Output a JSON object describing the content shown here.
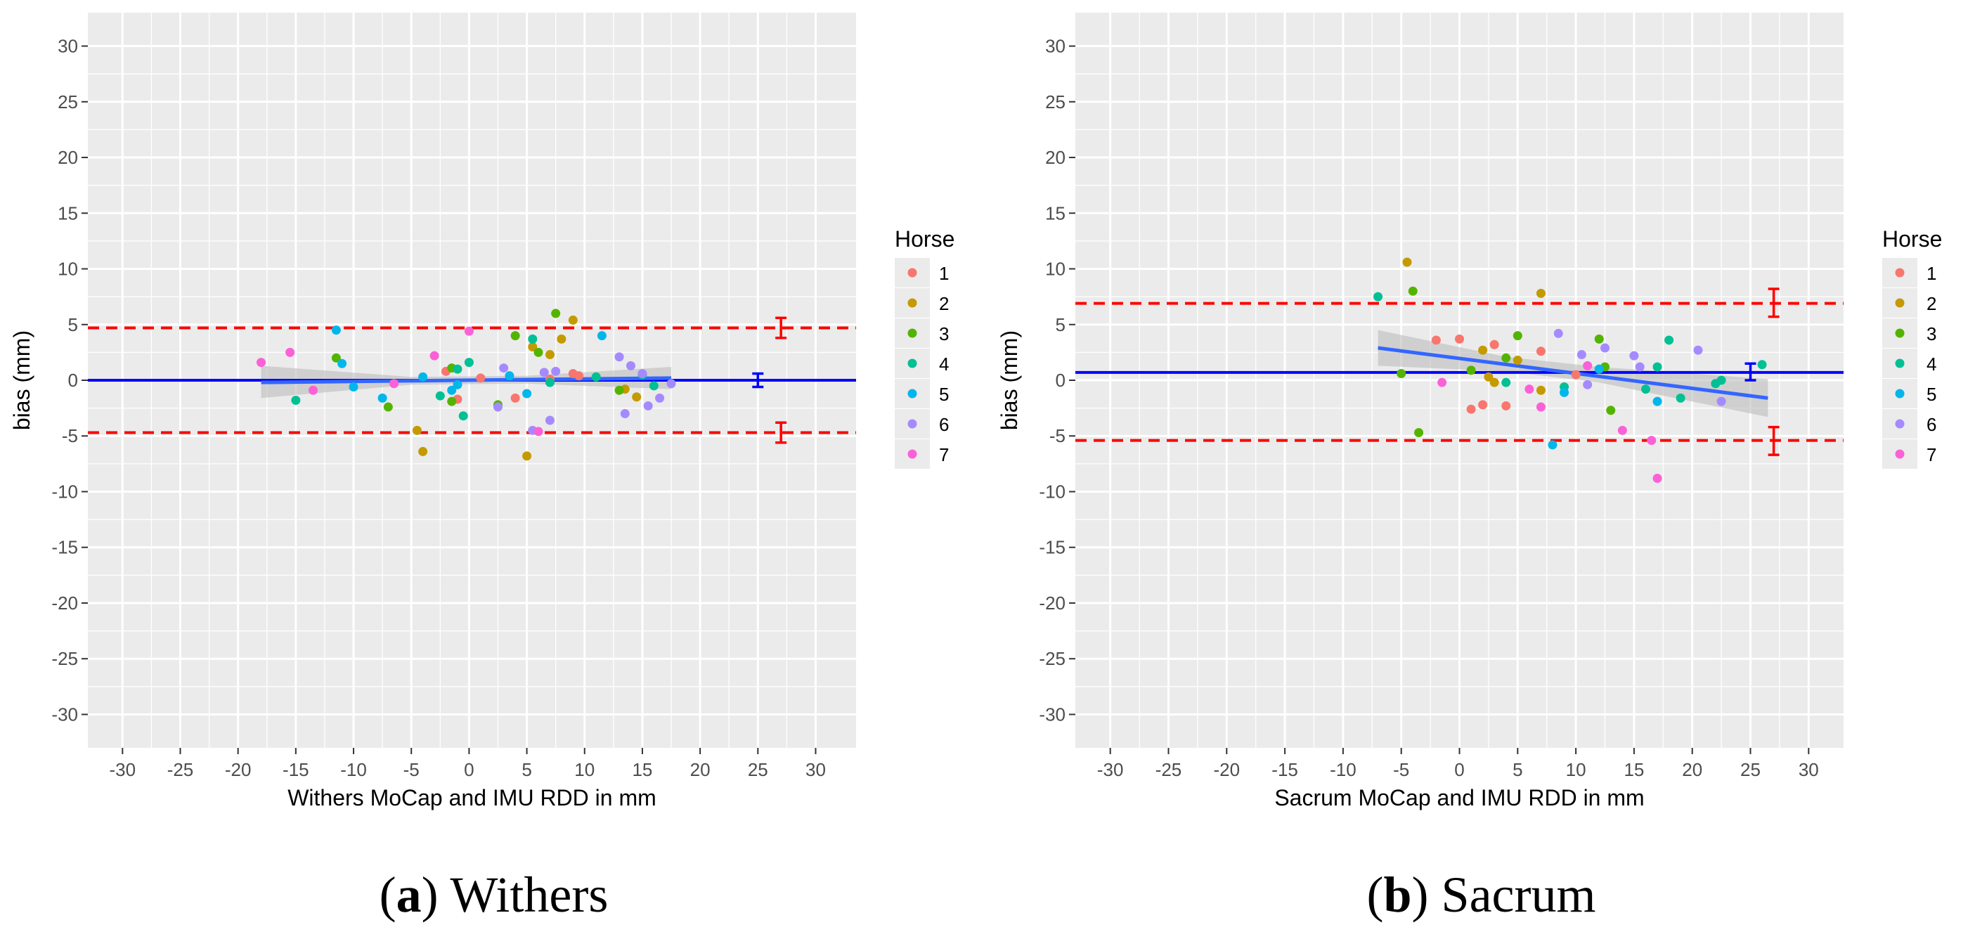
{
  "colors": {
    "panel_bg": "#EBEBEB",
    "grid": "#FFFFFF",
    "zero_line": "#0000FF",
    "fit_line": "#3366FF",
    "ci_band": "#BDBDBD",
    "loa": "#FF0000",
    "horses": [
      "#F8766D",
      "#C49A00",
      "#53B400",
      "#00C094",
      "#00B6EB",
      "#A58AFF",
      "#FB61D7"
    ]
  },
  "legend": {
    "title": "Horse",
    "items": [
      "1",
      "2",
      "3",
      "4",
      "5",
      "6",
      "7"
    ]
  },
  "chart_data": [
    {
      "type": "scatter",
      "panel": "a",
      "caption_letter": "a",
      "caption_text": "Withers",
      "xlabel": "Withers MoCap and IMU RDD in mm",
      "ylabel": "bias (mm)",
      "xlim": [
        -33,
        33.5
      ],
      "ylim": [
        -33,
        33
      ],
      "xticks": [
        -30,
        -25,
        -20,
        -15,
        -10,
        -5,
        0,
        5,
        10,
        15,
        20,
        25,
        30
      ],
      "yticks": [
        -30,
        -25,
        -20,
        -15,
        -10,
        -5,
        0,
        5,
        10,
        15,
        20,
        25,
        30
      ],
      "mean_bias": 0.0,
      "mean_bias_ci": [
        -0.6,
        0.6
      ],
      "upper_loa": 4.7,
      "upper_loa_ci": [
        3.8,
        5.6
      ],
      "lower_loa": -4.7,
      "lower_loa_ci": [
        -5.6,
        -3.8
      ],
      "ci_x": {
        "mean": 25,
        "loa": 27
      },
      "regression": {
        "x1": -18,
        "y1": -0.2,
        "x2": 17.5,
        "y2": 0.2
      },
      "regression_band": {
        "upper": [
          [
            -18,
            1.3
          ],
          [
            -5,
            0.3
          ],
          [
            5,
            0.4
          ],
          [
            17.5,
            1.2
          ]
        ],
        "lower": [
          [
            17.5,
            -0.8
          ],
          [
            5,
            -0.3
          ],
          [
            -5,
            -0.4
          ],
          [
            -18,
            -1.6
          ]
        ]
      },
      "points": [
        {
          "x": -2,
          "y": 0.8,
          "horse": 1
        },
        {
          "x": 1,
          "y": 0.2,
          "horse": 1
        },
        {
          "x": 4,
          "y": -1.6,
          "horse": 1
        },
        {
          "x": 7,
          "y": 0.1,
          "horse": 1
        },
        {
          "x": 9,
          "y": 0.6,
          "horse": 1
        },
        {
          "x": 9.5,
          "y": 0.4,
          "horse": 1
        },
        {
          "x": -1,
          "y": -1.7,
          "horse": 1
        },
        {
          "x": -4.5,
          "y": -4.5,
          "horse": 2
        },
        {
          "x": -4,
          "y": -6.4,
          "horse": 2
        },
        {
          "x": 5,
          "y": -6.8,
          "horse": 2
        },
        {
          "x": 5.5,
          "y": 3.0,
          "horse": 2
        },
        {
          "x": 7,
          "y": 2.3,
          "horse": 2
        },
        {
          "x": 8,
          "y": 3.7,
          "horse": 2
        },
        {
          "x": 9,
          "y": 5.4,
          "horse": 2
        },
        {
          "x": 13.5,
          "y": -0.8,
          "horse": 2
        },
        {
          "x": 14.5,
          "y": -1.5,
          "horse": 2
        },
        {
          "x": -11.5,
          "y": 2.0,
          "horse": 3
        },
        {
          "x": -7,
          "y": -2.4,
          "horse": 3
        },
        {
          "x": -1.5,
          "y": 1.1,
          "horse": 3
        },
        {
          "x": -1.5,
          "y": -1.9,
          "horse": 3
        },
        {
          "x": 2.5,
          "y": -2.2,
          "horse": 3
        },
        {
          "x": 4,
          "y": 4.0,
          "horse": 3
        },
        {
          "x": 6,
          "y": 2.5,
          "horse": 3
        },
        {
          "x": 7.5,
          "y": 6.0,
          "horse": 3
        },
        {
          "x": 13,
          "y": -0.9,
          "horse": 3
        },
        {
          "x": -15,
          "y": -1.8,
          "horse": 4
        },
        {
          "x": -2.5,
          "y": -1.4,
          "horse": 4
        },
        {
          "x": -1,
          "y": 1.0,
          "horse": 4
        },
        {
          "x": 0,
          "y": 1.6,
          "horse": 4
        },
        {
          "x": -0.5,
          "y": -3.2,
          "horse": 4
        },
        {
          "x": 5.5,
          "y": 3.7,
          "horse": 4
        },
        {
          "x": 7,
          "y": -0.2,
          "horse": 4
        },
        {
          "x": 11,
          "y": 0.3,
          "horse": 4
        },
        {
          "x": 15,
          "y": 0.5,
          "horse": 4
        },
        {
          "x": 16,
          "y": -0.5,
          "horse": 4
        },
        {
          "x": -11.5,
          "y": 4.5,
          "horse": 5
        },
        {
          "x": -11,
          "y": 1.5,
          "horse": 5
        },
        {
          "x": -10,
          "y": -0.6,
          "horse": 5
        },
        {
          "x": -7.5,
          "y": -1.6,
          "horse": 5
        },
        {
          "x": -4,
          "y": 0.3,
          "horse": 5
        },
        {
          "x": -1.5,
          "y": -0.9,
          "horse": 5
        },
        {
          "x": -1,
          "y": -0.4,
          "horse": 5
        },
        {
          "x": 3.5,
          "y": 0.4,
          "horse": 5
        },
        {
          "x": 5,
          "y": -1.2,
          "horse": 5
        },
        {
          "x": 11.5,
          "y": 4.0,
          "horse": 5
        },
        {
          "x": 2.5,
          "y": -2.4,
          "horse": 6
        },
        {
          "x": 3,
          "y": 1.1,
          "horse": 6
        },
        {
          "x": 5.5,
          "y": -4.5,
          "horse": 6
        },
        {
          "x": 6.5,
          "y": 0.7,
          "horse": 6
        },
        {
          "x": 7,
          "y": -3.6,
          "horse": 6
        },
        {
          "x": 7.5,
          "y": 0.8,
          "horse": 6
        },
        {
          "x": 13,
          "y": 2.1,
          "horse": 6
        },
        {
          "x": 13.5,
          "y": -3.0,
          "horse": 6
        },
        {
          "x": 14,
          "y": 1.3,
          "horse": 6
        },
        {
          "x": 15,
          "y": 0.6,
          "horse": 6
        },
        {
          "x": 15.5,
          "y": -2.3,
          "horse": 6
        },
        {
          "x": 16.5,
          "y": -1.6,
          "horse": 6
        },
        {
          "x": 17.5,
          "y": -0.3,
          "horse": 6
        },
        {
          "x": -18,
          "y": 1.6,
          "horse": 7
        },
        {
          "x": -15.5,
          "y": 2.5,
          "horse": 7
        },
        {
          "x": -13.5,
          "y": -0.9,
          "horse": 7
        },
        {
          "x": -6.5,
          "y": -0.3,
          "horse": 7
        },
        {
          "x": -3,
          "y": 2.2,
          "horse": 7
        },
        {
          "x": 0,
          "y": 4.4,
          "horse": 7
        },
        {
          "x": 6,
          "y": -4.6,
          "horse": 7
        }
      ]
    },
    {
      "type": "scatter",
      "panel": "b",
      "caption_letter": "b",
      "caption_text": "Sacrum",
      "xlabel": "Sacrum MoCap and IMU RDD in mm",
      "ylabel": "bias (mm)",
      "xlim": [
        -33,
        33
      ],
      "ylim": [
        -33,
        33
      ],
      "xticks": [
        -30,
        -25,
        -20,
        -15,
        -10,
        -5,
        0,
        5,
        10,
        15,
        20,
        25,
        30
      ],
      "yticks": [
        -30,
        -25,
        -20,
        -15,
        -10,
        -5,
        0,
        5,
        10,
        15,
        20,
        25,
        30
      ],
      "mean_bias": 0.7,
      "mean_bias_ci": [
        0.0,
        1.5
      ],
      "upper_loa": 6.9,
      "upper_loa_ci": [
        5.7,
        8.2
      ],
      "lower_loa": -5.4,
      "lower_loa_ci": [
        -6.7,
        -4.2
      ],
      "ci_x": {
        "mean": 25,
        "loa": 27
      },
      "regression": {
        "x1": -7,
        "y1": 2.9,
        "x2": 26.5,
        "y2": -1.6
      },
      "regression_band": {
        "upper": [
          [
            -7,
            4.5
          ],
          [
            4,
            2.1
          ],
          [
            12,
            1.2
          ],
          [
            26.5,
            0.1
          ]
        ],
        "lower": [
          [
            26.5,
            -3.3
          ],
          [
            12,
            -0.2
          ],
          [
            4,
            0.8
          ],
          [
            -7,
            1.3
          ]
        ]
      },
      "points": [
        {
          "x": -2,
          "y": 3.6,
          "horse": 1
        },
        {
          "x": 0,
          "y": 3.7,
          "horse": 1
        },
        {
          "x": 2,
          "y": -2.2,
          "horse": 1
        },
        {
          "x": 3,
          "y": 3.2,
          "horse": 1
        },
        {
          "x": 4,
          "y": -2.3,
          "horse": 1
        },
        {
          "x": 1,
          "y": -2.6,
          "horse": 1
        },
        {
          "x": 7,
          "y": 2.6,
          "horse": 1
        },
        {
          "x": 10,
          "y": 0.5,
          "horse": 1
        },
        {
          "x": -4.5,
          "y": 10.6,
          "horse": 2
        },
        {
          "x": 2,
          "y": 2.7,
          "horse": 2
        },
        {
          "x": 2.5,
          "y": 0.3,
          "horse": 2
        },
        {
          "x": 3,
          "y": -0.2,
          "horse": 2
        },
        {
          "x": 5,
          "y": 1.8,
          "horse": 2
        },
        {
          "x": 7,
          "y": 7.8,
          "horse": 2
        },
        {
          "x": 7,
          "y": -0.9,
          "horse": 2
        },
        {
          "x": -4,
          "y": 8.0,
          "horse": 3
        },
        {
          "x": -3.5,
          "y": -4.7,
          "horse": 3
        },
        {
          "x": -5,
          "y": 0.6,
          "horse": 3
        },
        {
          "x": 1,
          "y": 0.9,
          "horse": 3
        },
        {
          "x": 4,
          "y": 2.0,
          "horse": 3
        },
        {
          "x": 5,
          "y": 4.0,
          "horse": 3
        },
        {
          "x": 12,
          "y": 3.7,
          "horse": 3
        },
        {
          "x": 13,
          "y": -2.7,
          "horse": 3
        },
        {
          "x": 12.5,
          "y": 1.2,
          "horse": 3
        },
        {
          "x": -7,
          "y": 7.5,
          "horse": 4
        },
        {
          "x": 4,
          "y": -0.2,
          "horse": 4
        },
        {
          "x": 9,
          "y": -0.6,
          "horse": 4
        },
        {
          "x": 16,
          "y": -0.8,
          "horse": 4
        },
        {
          "x": 17,
          "y": 1.2,
          "horse": 4
        },
        {
          "x": 18,
          "y": 3.6,
          "horse": 4
        },
        {
          "x": 19,
          "y": -1.6,
          "horse": 4
        },
        {
          "x": 22,
          "y": -0.3,
          "horse": 4
        },
        {
          "x": 22.5,
          "y": 0.0,
          "horse": 4
        },
        {
          "x": 26,
          "y": 1.4,
          "horse": 4
        },
        {
          "x": 8,
          "y": -5.8,
          "horse": 5
        },
        {
          "x": 9,
          "y": -1.1,
          "horse": 5
        },
        {
          "x": 12,
          "y": 1.0,
          "horse": 5
        },
        {
          "x": 17,
          "y": -1.9,
          "horse": 5
        },
        {
          "x": 8.5,
          "y": 4.2,
          "horse": 6
        },
        {
          "x": 10.5,
          "y": 2.3,
          "horse": 6
        },
        {
          "x": 11,
          "y": -0.4,
          "horse": 6
        },
        {
          "x": 12.5,
          "y": 2.9,
          "horse": 6
        },
        {
          "x": 15,
          "y": 2.2,
          "horse": 6
        },
        {
          "x": 15.5,
          "y": 1.2,
          "horse": 6
        },
        {
          "x": 20.5,
          "y": 2.7,
          "horse": 6
        },
        {
          "x": 22.5,
          "y": -1.9,
          "horse": 6
        },
        {
          "x": -1.5,
          "y": -0.2,
          "horse": 7
        },
        {
          "x": 6,
          "y": -0.8,
          "horse": 7
        },
        {
          "x": 7,
          "y": -2.4,
          "horse": 7
        },
        {
          "x": 11,
          "y": 1.3,
          "horse": 7
        },
        {
          "x": 14,
          "y": -4.5,
          "horse": 7
        },
        {
          "x": 16.5,
          "y": -5.4,
          "horse": 7
        },
        {
          "x": 17,
          "y": -8.8,
          "horse": 7
        }
      ]
    }
  ]
}
